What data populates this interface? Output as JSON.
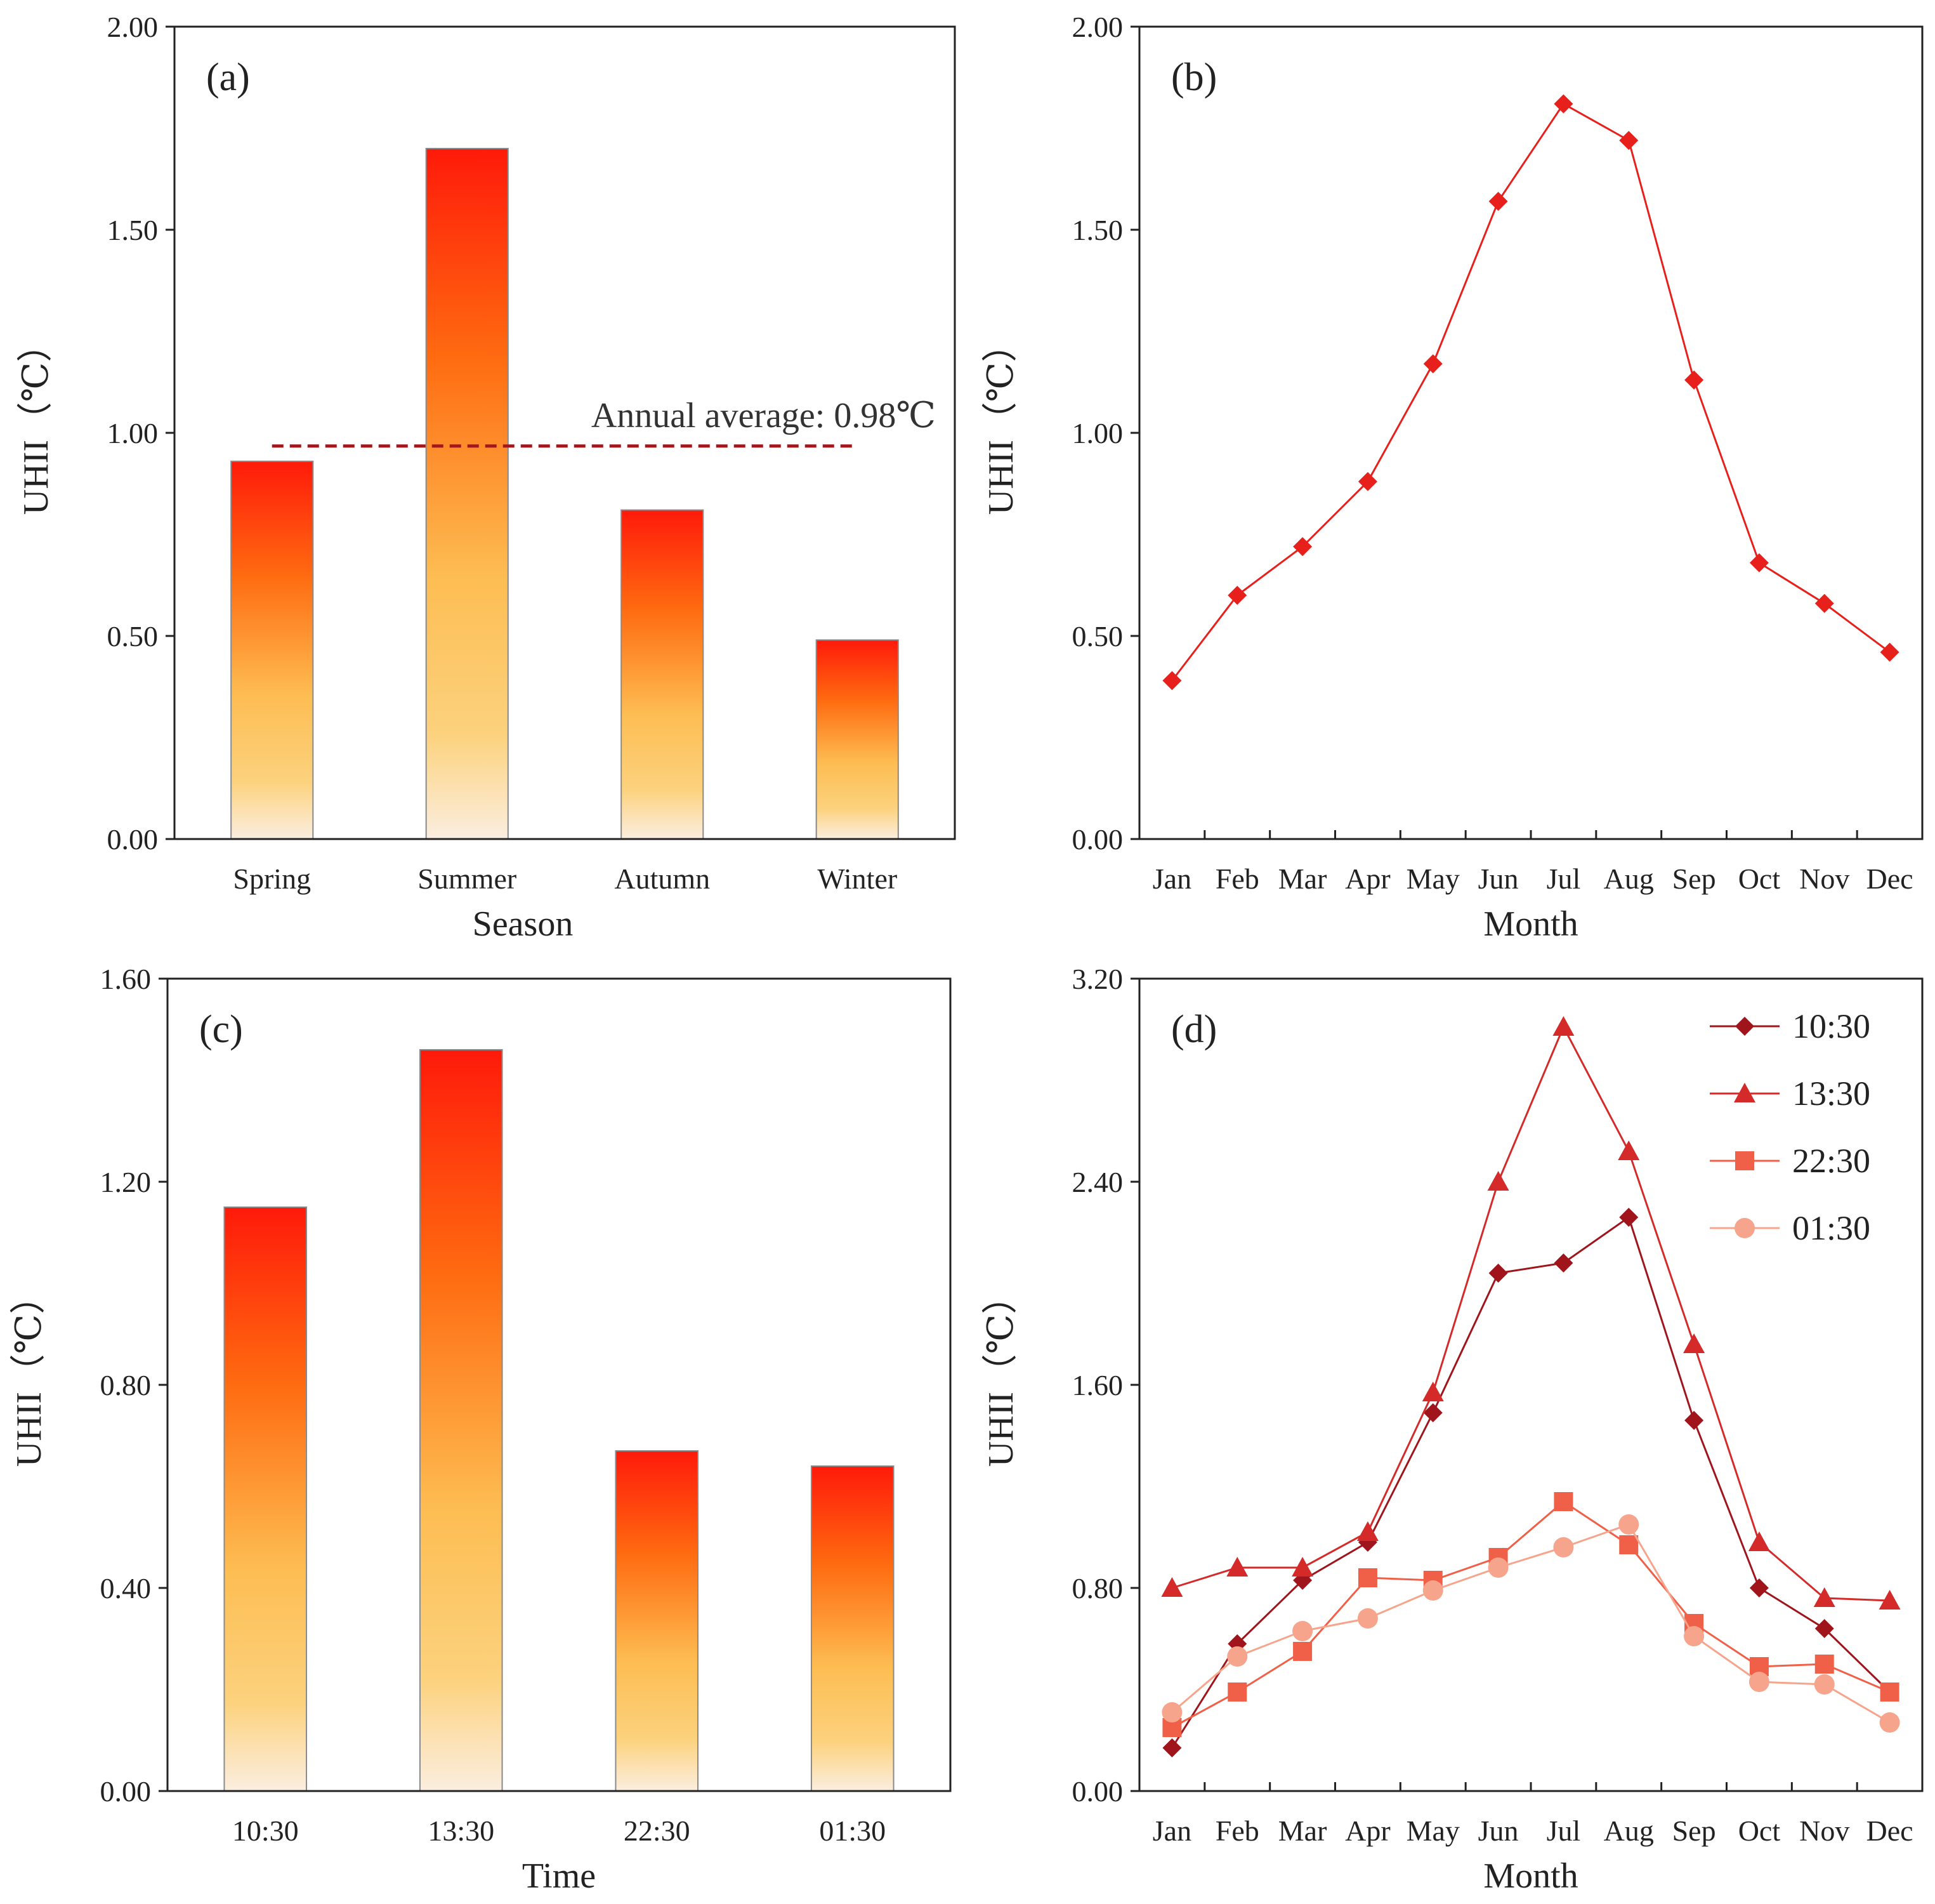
{
  "chart_data": [
    {
      "panel": "(a)",
      "type": "bar",
      "title": "",
      "xlabel": "Season",
      "ylabel": "UHII (℃)",
      "ylabel_main": "UHII",
      "ylabel_unit": "（℃）",
      "ylim": [
        0,
        2.0
      ],
      "yticks": [
        "0.00",
        "0.50",
        "1.00",
        "1.50",
        "2.00"
      ],
      "categories": [
        "Spring",
        "Summer",
        "Autumn",
        "Winter"
      ],
      "values": [
        0.93,
        1.7,
        0.81,
        0.49
      ],
      "reference_line": {
        "value": 0.98,
        "label": "Annual average: 0.98℃"
      },
      "grid": false
    },
    {
      "panel": "(b)",
      "type": "line",
      "title": "",
      "xlabel": "Month",
      "ylabel": "UHII (℃)",
      "ylabel_main": "UHII",
      "ylabel_unit": "（℃）",
      "ylim": [
        0,
        2.0
      ],
      "yticks": [
        "0.00",
        "0.50",
        "1.00",
        "1.50",
        "2.00"
      ],
      "categories": [
        "Jan",
        "Feb",
        "Mar",
        "Apr",
        "May",
        "Jun",
        "Jul",
        "Aug",
        "Sep",
        "Oct",
        "Nov",
        "Dec"
      ],
      "series": [
        {
          "name": "UHII",
          "marker": "diamond",
          "color": "#e8201c",
          "values": [
            0.39,
            0.6,
            0.72,
            0.88,
            1.17,
            1.57,
            1.81,
            1.72,
            1.13,
            0.68,
            0.58,
            0.46
          ]
        }
      ],
      "grid": false
    },
    {
      "panel": "(c)",
      "type": "bar",
      "title": "",
      "xlabel": "Time",
      "ylabel": "UHII (℃)",
      "ylabel_main": "UHII",
      "ylabel_unit": "（℃）",
      "ylim": [
        0,
        1.6
      ],
      "yticks": [
        "0.00",
        "0.40",
        "0.80",
        "1.20",
        "1.60"
      ],
      "categories": [
        "10:30",
        "13:30",
        "22:30",
        "01:30"
      ],
      "values": [
        1.15,
        1.46,
        0.67,
        0.64
      ],
      "grid": false
    },
    {
      "panel": "(d)",
      "type": "line",
      "title": "",
      "xlabel": "Month",
      "ylabel": "UHII (℃)",
      "ylabel_main": "UHII",
      "ylabel_unit": "（℃）",
      "ylim": [
        0,
        3.2
      ],
      "yticks": [
        "0.00",
        "0.80",
        "1.60",
        "2.40",
        "3.20"
      ],
      "categories": [
        "Jan",
        "Feb",
        "Mar",
        "Apr",
        "May",
        "Jun",
        "Jul",
        "Aug",
        "Sep",
        "Oct",
        "Nov",
        "Dec"
      ],
      "legend_position": "top-right",
      "series": [
        {
          "name": "10:30",
          "marker": "diamond",
          "color": "#a0141c",
          "values": [
            0.17,
            0.58,
            0.83,
            0.98,
            1.49,
            2.04,
            2.08,
            2.26,
            1.46,
            0.8,
            0.64,
            0.39
          ]
        },
        {
          "name": "13:30",
          "marker": "triangle",
          "color": "#d42a2a",
          "values": [
            0.8,
            0.88,
            0.88,
            1.02,
            1.57,
            2.4,
            3.01,
            2.52,
            1.76,
            0.98,
            0.76,
            0.75
          ]
        },
        {
          "name": "22:30",
          "marker": "square",
          "color": "#f06048",
          "values": [
            0.25,
            0.39,
            0.55,
            0.84,
            0.83,
            0.92,
            1.14,
            0.97,
            0.66,
            0.49,
            0.5,
            0.39
          ]
        },
        {
          "name": "01:30",
          "marker": "circle",
          "color": "#f6a48c",
          "values": [
            0.31,
            0.53,
            0.63,
            0.68,
            0.79,
            0.88,
            0.96,
            1.05,
            0.61,
            0.43,
            0.42,
            0.27
          ]
        }
      ],
      "grid": false
    }
  ]
}
